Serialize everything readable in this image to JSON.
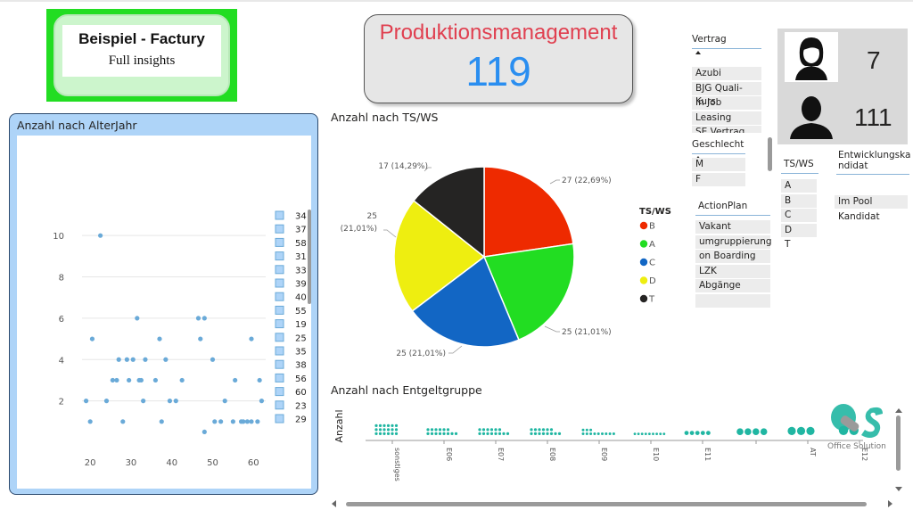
{
  "logo": {
    "title": "Beispiel - Factury",
    "subtitle": "Full insights"
  },
  "kpi": {
    "title": "Produktionsmanagement",
    "value": "119"
  },
  "age_chart": {
    "title": "Anzahl nach AlterJahr",
    "legend": [
      "34",
      "37",
      "58",
      "31",
      "33",
      "39",
      "40",
      "55",
      "19",
      "25",
      "35",
      "38",
      "56",
      "60",
      "23",
      "29"
    ]
  },
  "pie_chart": {
    "title": "Anzahl nach TS/WS",
    "legend_title": "TS/WS"
  },
  "entgelt_chart": {
    "title": "Anzahl nach Entgeltgruppe",
    "ylabel": "Anzahl"
  },
  "slicers": {
    "vertrag": {
      "title": "Vertrag",
      "items": [
        "Azubi",
        "BJG Quali-Kurs",
        "In Job",
        "Leasing",
        "SE Vertrag"
      ]
    },
    "geschlecht": {
      "title": "Geschlecht",
      "items": [
        "M",
        "F"
      ]
    },
    "actionplan": {
      "title": "ActionPlan",
      "items": [
        "Vakant",
        "umgruppierung",
        "on Boarding",
        "LZK",
        "Abgänge",
        ""
      ]
    },
    "tsws": {
      "title": "TS/WS",
      "items": [
        "A",
        "B",
        "C",
        "D",
        "T"
      ]
    },
    "entwicklung": {
      "title_line1": "Entwicklungska",
      "title_line2": "ndidat",
      "items": [
        "Im Pool",
        "Kandidat"
      ]
    }
  },
  "gender_counts": {
    "female": "7",
    "male": "111"
  },
  "watermark": {
    "text": "Office Solution"
  },
  "colors": {
    "pie_B": "#ee2a00",
    "pie_A": "#22dd22",
    "pie_C": "#1266c4",
    "pie_D": "#eeee10",
    "pie_T": "#252423",
    "scatter": "#6aaad8",
    "beeswarm": "#20b6a2"
  },
  "chart_data": [
    {
      "type": "scatter",
      "title": "Anzahl nach AlterJahr",
      "xlim": [
        18,
        63
      ],
      "ylim": [
        0,
        11
      ],
      "xticks": [
        20,
        30,
        40,
        50,
        60
      ],
      "yticks": [
        2,
        4,
        6,
        8,
        10
      ],
      "points": [
        [
          22.5,
          10
        ],
        [
          31.5,
          6
        ],
        [
          46.5,
          6
        ],
        [
          48,
          6
        ],
        [
          20.5,
          5
        ],
        [
          37,
          5
        ],
        [
          47,
          5
        ],
        [
          59.5,
          5
        ],
        [
          27,
          4
        ],
        [
          29,
          4
        ],
        [
          30.5,
          4
        ],
        [
          33.5,
          4
        ],
        [
          38.5,
          4
        ],
        [
          50,
          4
        ],
        [
          25.5,
          3
        ],
        [
          26.5,
          3
        ],
        [
          29.5,
          3
        ],
        [
          32,
          3
        ],
        [
          32.5,
          3
        ],
        [
          36,
          3
        ],
        [
          42.5,
          3
        ],
        [
          55.5,
          3
        ],
        [
          61.5,
          3
        ],
        [
          19,
          2
        ],
        [
          24,
          2
        ],
        [
          33,
          2
        ],
        [
          39.5,
          2
        ],
        [
          41,
          2
        ],
        [
          53,
          2
        ],
        [
          62,
          2
        ],
        [
          20,
          1
        ],
        [
          28,
          1
        ],
        [
          37.5,
          1
        ],
        [
          50.5,
          1
        ],
        [
          52,
          1
        ],
        [
          55,
          1
        ],
        [
          57,
          1
        ],
        [
          57.5,
          1
        ],
        [
          58.5,
          1
        ],
        [
          59.5,
          1
        ],
        [
          61,
          1
        ],
        [
          48,
          0.5
        ]
      ]
    },
    {
      "type": "pie",
      "title": "Anzahl nach TS/WS",
      "legend_title": "TS/WS",
      "slices": [
        {
          "name": "B",
          "value": 27,
          "label": "27 (22,69%)"
        },
        {
          "name": "A",
          "value": 25,
          "label": "25 (21,01%)"
        },
        {
          "name": "C",
          "value": 25,
          "label": "25 (21,01%)"
        },
        {
          "name": "D",
          "value": 25,
          "label_line1": "25",
          "label_line2": "(21,01%)"
        },
        {
          "name": "T",
          "value": 17,
          "label": "17 (14,29%)"
        }
      ]
    },
    {
      "type": "scatter",
      "title": "Anzahl nach Entgeltgruppe",
      "ylabel": "Anzahl",
      "categories": [
        "sonstiges",
        "E06",
        "E07",
        "E08",
        "E09",
        "E10",
        "E11",
        "",
        "AT",
        "E12"
      ],
      "counts": [
        18,
        14,
        14,
        14,
        12,
        9,
        5,
        4,
        3,
        2
      ]
    }
  ]
}
